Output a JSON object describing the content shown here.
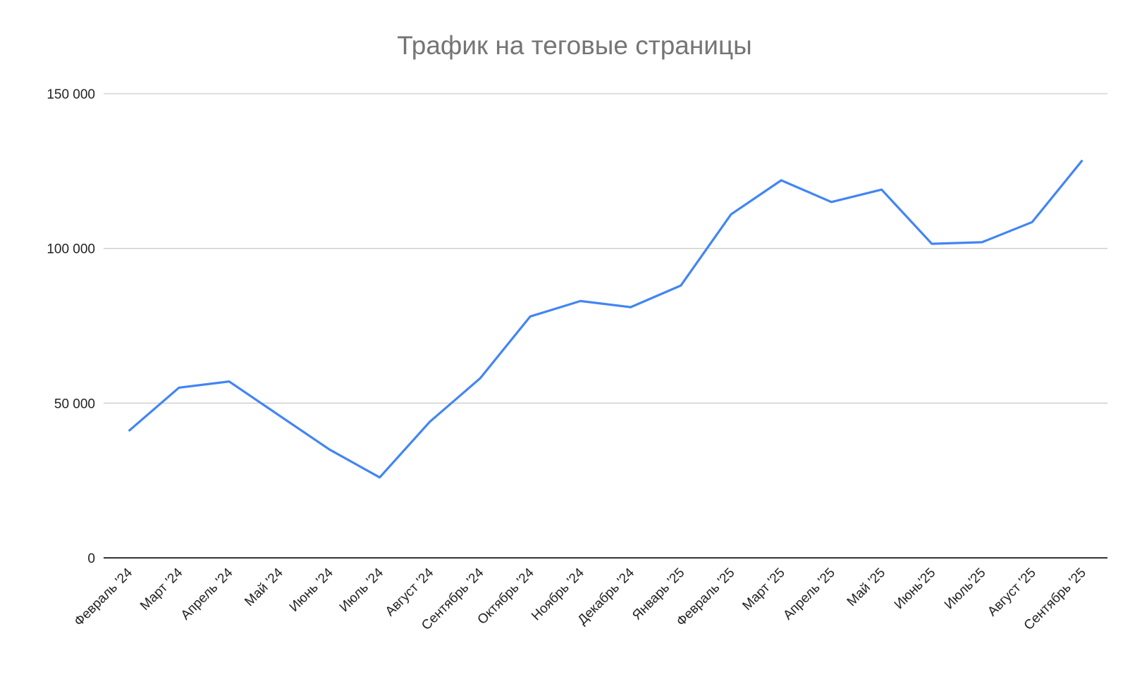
{
  "chart_data": {
    "type": "line",
    "title": "Трафик на теговые страницы",
    "xlabel": "",
    "ylabel": "",
    "ylim": [
      0,
      150000
    ],
    "yticks": [
      0,
      50000,
      100000,
      150000
    ],
    "ytick_labels": [
      "0",
      "50 000",
      "100 000",
      "150 000"
    ],
    "grid": true,
    "legend": "none",
    "categories": [
      "Февраль '24",
      "Март '24",
      "Апрель '24",
      "Май '24",
      "Июнь '24",
      "Июль '24",
      "Август '24",
      "Сентябрь '24",
      "Октябрь '24",
      "Ноябрь '24",
      "Декабрь '24",
      "Январь '25",
      "Февраль '25",
      "Март '25",
      "Апрель '25",
      "Май '25",
      "Июнь'25",
      "Июль'25",
      "Август '25",
      "Сентябрь '25"
    ],
    "series": [
      {
        "name": "Трафик",
        "color": "#4285f4",
        "values": [
          41000,
          55000,
          57000,
          46000,
          35000,
          26000,
          44000,
          58000,
          78000,
          83000,
          81000,
          88000,
          111000,
          122000,
          115000,
          119000,
          101500,
          102000,
          108500,
          128500
        ]
      }
    ]
  },
  "colors": {
    "line": "#4285f4",
    "grid": "#cccccc",
    "axis": "#333333",
    "title": "#757575"
  }
}
